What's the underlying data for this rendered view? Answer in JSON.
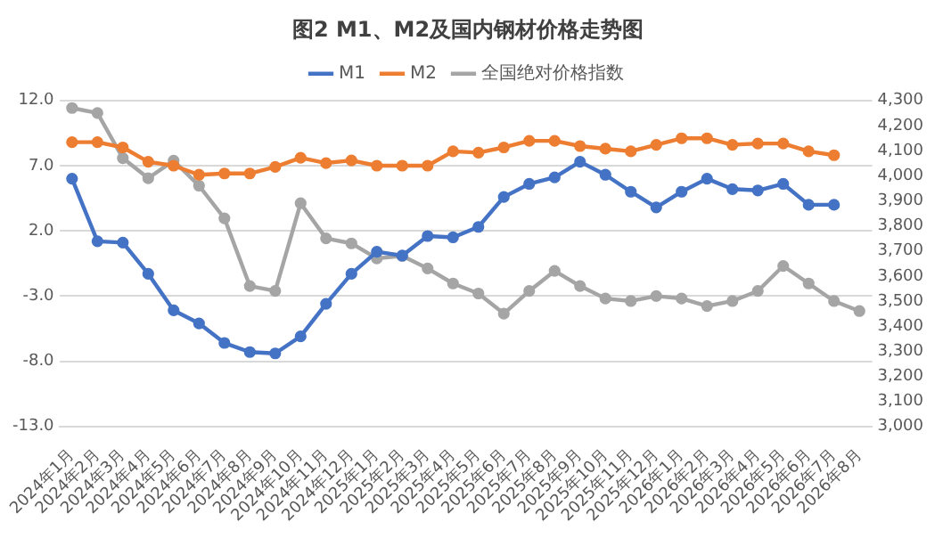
{
  "chart_data": {
    "type": "line",
    "title": "图2 M1、M2及国内钢材价格走势图",
    "categories": [
      "2024年1月",
      "2024年2月",
      "2024年3月",
      "2024年4月",
      "2024年5月",
      "2024年6月",
      "2024年7月",
      "2024年8月",
      "2024年9月",
      "2024年10月",
      "2024年11月",
      "2024年12月",
      "2025年1月",
      "2025年2月",
      "2025年3月",
      "2025年4月",
      "2025年5月",
      "2025年6月",
      "2025年7月",
      "2025年8月",
      "2025年9月",
      "2025年10月",
      "2025年11月",
      "2025年12月",
      "2026年1月",
      "2026年2月",
      "2026年3月",
      "2026年4月",
      "2026年5月",
      "2026年6月",
      "2026年7月",
      "2026年8月"
    ],
    "series": [
      {
        "name": "M1",
        "color": "#4472c4",
        "values": [
          6.0,
          1.2,
          1.1,
          -1.3,
          -4.1,
          -5.1,
          -6.6,
          -7.3,
          -7.4,
          -6.1,
          -3.6,
          -1.3,
          0.4,
          0.1,
          1.6,
          1.5,
          2.3,
          4.6,
          5.6,
          6.1,
          7.3,
          6.3,
          5.0,
          3.8,
          5.0,
          6.0,
          5.2,
          5.1,
          5.6,
          4.0,
          4.0,
          null
        ]
      },
      {
        "name": "M2",
        "color": "#ed7d31",
        "values": [
          8.8,
          8.8,
          8.4,
          7.3,
          7.0,
          6.3,
          6.4,
          6.4,
          6.9,
          7.6,
          7.2,
          7.4,
          7.0,
          7.0,
          7.0,
          8.1,
          8.0,
          8.4,
          8.9,
          8.9,
          8.5,
          8.3,
          8.1,
          8.6,
          9.1,
          9.1,
          8.6,
          8.7,
          8.7,
          8.1,
          7.8,
          null
        ]
      },
      {
        "name": "全国绝对价格指数",
        "color": "#a5a5a5",
        "axis": "y2",
        "values": [
          4270,
          4250,
          4070,
          3990,
          4060,
          3960,
          3830,
          3560,
          3540,
          3890,
          3750,
          3730,
          3670,
          3680,
          3630,
          3570,
          3530,
          3450,
          3540,
          3620,
          3560,
          3510,
          3500,
          3520,
          3510,
          3480,
          3500,
          3540,
          3640,
          3570,
          3500,
          3460
        ]
      }
    ],
    "ylim": [
      -13,
      12
    ],
    "yticks": [
      {
        "value": -13,
        "label": "-13.0"
      },
      {
        "value": -8,
        "label": "-8.0"
      },
      {
        "value": -3,
        "label": "-3.0"
      },
      {
        "value": 2,
        "label": "2.0"
      },
      {
        "value": 7,
        "label": "7.0"
      },
      {
        "value": 12,
        "label": "12.0"
      }
    ],
    "y2lim": [
      3000,
      4300
    ],
    "y2ticks": [
      {
        "value": 3000,
        "label": "3,000"
      },
      {
        "value": 3100,
        "label": "3,100"
      },
      {
        "value": 3200,
        "label": "3,200"
      },
      {
        "value": 3300,
        "label": "3,300"
      },
      {
        "value": 3400,
        "label": "3,400"
      },
      {
        "value": 3500,
        "label": "3,500"
      },
      {
        "value": 3600,
        "label": "3,600"
      },
      {
        "value": 3700,
        "label": "3,700"
      },
      {
        "value": 3800,
        "label": "3,800"
      },
      {
        "value": 3900,
        "label": "3,900"
      },
      {
        "value": 4000,
        "label": "4,000"
      },
      {
        "value": 4100,
        "label": "4,100"
      },
      {
        "value": 4200,
        "label": "4,200"
      },
      {
        "value": 4300,
        "label": "4,300"
      }
    ],
    "grid": "y",
    "legend": "top",
    "marker": "circle",
    "line_style": "solid"
  }
}
